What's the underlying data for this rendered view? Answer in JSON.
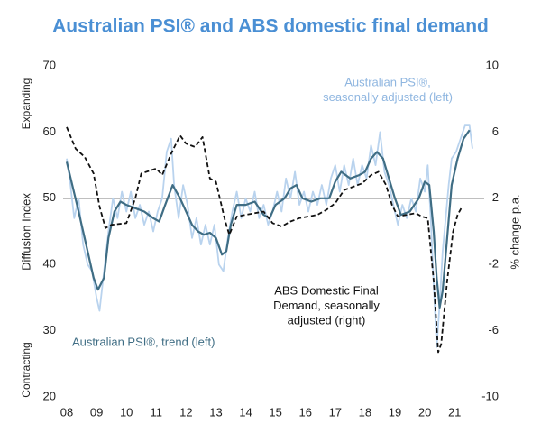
{
  "chart_data": {
    "type": "line",
    "title": "Australian PSI® and ABS domestic final demand",
    "ylabel": "Diffusion Index",
    "y2label": "% change p.a.",
    "ylabel_top": "Expanding",
    "ylabel_bottom": "Contracting",
    "xlim": [
      2008,
      2021.75
    ],
    "xticks": [
      {
        "value": 2008,
        "label": "08"
      },
      {
        "value": 2009,
        "label": "09"
      },
      {
        "value": 2010,
        "label": "10"
      },
      {
        "value": 2011,
        "label": "11"
      },
      {
        "value": 2012,
        "label": "12"
      },
      {
        "value": 2013,
        "label": "13"
      },
      {
        "value": 2014,
        "label": "14"
      },
      {
        "value": 2015,
        "label": "15"
      },
      {
        "value": 2016,
        "label": "16"
      },
      {
        "value": 2017,
        "label": "17"
      },
      {
        "value": 2018,
        "label": "18"
      },
      {
        "value": 2019,
        "label": "19"
      },
      {
        "value": 2020,
        "label": "20"
      },
      {
        "value": 2021,
        "label": "21"
      }
    ],
    "ylim": [
      20,
      70
    ],
    "yticks": [
      20,
      30,
      40,
      50,
      60,
      70
    ],
    "y2lim": [
      -10,
      10
    ],
    "y2ticks": [
      -10,
      -6,
      -2,
      2,
      6,
      10
    ],
    "reference_line": 50,
    "series": [
      {
        "name": "Australian PSI®, seasonally adjusted (left)",
        "color": "#b9d3ee",
        "dash": false,
        "width": 1.8,
        "x": [
          2008.0,
          2008.1,
          2008.25,
          2008.4,
          2008.55,
          2008.7,
          2008.85,
          2009.0,
          2009.1,
          2009.25,
          2009.4,
          2009.55,
          2009.7,
          2009.85,
          2010.0,
          2010.15,
          2010.3,
          2010.45,
          2010.6,
          2010.75,
          2010.9,
          2011.05,
          2011.2,
          2011.35,
          2011.5,
          2011.6,
          2011.75,
          2011.9,
          2012.05,
          2012.2,
          2012.35,
          2012.5,
          2012.65,
          2012.8,
          2012.95,
          2013.1,
          2013.25,
          2013.4,
          2013.55,
          2013.7,
          2013.85,
          2014.0,
          2014.15,
          2014.3,
          2014.45,
          2014.6,
          2014.75,
          2014.9,
          2015.05,
          2015.2,
          2015.35,
          2015.5,
          2015.65,
          2015.8,
          2015.95,
          2016.1,
          2016.25,
          2016.4,
          2016.55,
          2016.7,
          2016.85,
          2017.0,
          2017.15,
          2017.3,
          2017.45,
          2017.6,
          2017.75,
          2017.9,
          2018.05,
          2018.2,
          2018.35,
          2018.5,
          2018.65,
          2018.8,
          2018.95,
          2019.1,
          2019.25,
          2019.4,
          2019.55,
          2019.7,
          2019.85,
          2020.0,
          2020.1,
          2020.2,
          2020.3,
          2020.4,
          2020.5,
          2020.6,
          2020.7,
          2020.8,
          2020.9,
          2021.05,
          2021.2,
          2021.35,
          2021.5,
          2021.6
        ],
        "values": [
          56,
          53,
          47,
          50,
          43,
          40,
          39,
          35,
          33,
          39,
          45,
          50,
          47,
          51,
          48,
          51,
          47,
          49,
          46,
          48,
          45,
          48,
          50,
          57,
          59,
          52,
          47,
          52,
          49,
          44,
          47,
          43,
          46,
          43,
          46,
          40,
          39,
          44,
          48,
          51,
          47,
          50,
          48,
          51,
          47,
          49,
          46,
          48,
          51,
          48,
          53,
          50,
          54,
          49,
          51,
          48,
          51,
          49,
          52,
          49,
          53,
          55,
          51,
          55,
          52,
          56,
          52,
          55,
          53,
          58,
          55,
          60,
          54,
          52,
          49,
          46,
          49,
          47,
          50,
          48,
          53,
          51,
          55,
          47,
          37,
          27.5,
          34,
          42,
          47,
          52,
          56,
          57,
          59,
          61,
          61,
          57.5
        ]
      },
      {
        "name": "Australian PSI®, trend (left)",
        "color": "#3f6d84",
        "dash": false,
        "width": 2.2,
        "x": [
          2008.0,
          2008.4,
          2008.7,
          2008.9,
          2009.05,
          2009.25,
          2009.4,
          2009.6,
          2009.8,
          2010.0,
          2010.3,
          2010.6,
          2010.9,
          2011.1,
          2011.3,
          2011.55,
          2011.8,
          2012.0,
          2012.2,
          2012.4,
          2012.6,
          2012.8,
          2013.0,
          2013.2,
          2013.35,
          2013.5,
          2013.7,
          2014.0,
          2014.3,
          2014.6,
          2014.8,
          2015.0,
          2015.3,
          2015.5,
          2015.7,
          2015.9,
          2016.2,
          2016.5,
          2016.8,
          2017.0,
          2017.2,
          2017.5,
          2017.8,
          2018.0,
          2018.2,
          2018.4,
          2018.6,
          2018.8,
          2019.0,
          2019.2,
          2019.5,
          2019.8,
          2020.0,
          2020.15,
          2020.3,
          2020.4,
          2020.5,
          2020.6,
          2020.75,
          2020.9,
          2021.1,
          2021.3,
          2021.5
        ],
        "values": [
          55.5,
          48,
          42,
          38,
          36.2,
          38,
          44,
          48,
          49.5,
          49,
          48.5,
          48,
          47,
          46.5,
          49,
          52,
          50,
          48,
          46,
          45,
          44.5,
          44.8,
          44,
          41.5,
          42,
          46,
          49,
          49,
          49.5,
          47.5,
          47,
          49,
          50,
          51.5,
          52,
          50,
          49.5,
          50,
          50,
          52.5,
          54,
          53,
          53.5,
          54,
          56,
          57,
          56,
          53,
          50,
          47.5,
          48,
          50,
          52.5,
          52,
          45,
          38,
          33.5,
          36,
          44,
          52,
          56,
          59,
          60.3
        ]
      },
      {
        "name": "ABS Domestic Final Demand, seasonally adjusted (right)",
        "color": "#111111",
        "dash": true,
        "width": 1.8,
        "axis": "y2",
        "x": [
          2008.0,
          2008.3,
          2008.6,
          2008.9,
          2009.1,
          2009.3,
          2009.5,
          2010.0,
          2010.3,
          2010.5,
          2011.0,
          2011.2,
          2011.5,
          2011.8,
          2012.0,
          2012.3,
          2012.55,
          2012.8,
          2013.0,
          2013.3,
          2013.45,
          2013.7,
          2014.0,
          2014.3,
          2014.6,
          2014.9,
          2015.2,
          2015.5,
          2015.8,
          2016.1,
          2016.4,
          2016.7,
          2017.0,
          2017.3,
          2017.6,
          2017.9,
          2018.2,
          2018.45,
          2018.7,
          2018.9,
          2019.1,
          2019.4,
          2019.7,
          2019.9,
          2020.1,
          2020.3,
          2020.45,
          2020.55,
          2020.75,
          2020.95,
          2021.1,
          2021.25
        ],
        "values": [
          6.3,
          5,
          4.5,
          3.5,
          1.5,
          0.2,
          0.4,
          0.5,
          2,
          3.5,
          3.8,
          3.4,
          4.7,
          5.8,
          5.3,
          5.1,
          5.7,
          3.2,
          3.0,
          0.7,
          -0.2,
          0.9,
          1.0,
          1.1,
          1.2,
          0.5,
          0.3,
          0.6,
          0.8,
          0.9,
          1.0,
          1.3,
          1.7,
          2.5,
          2.7,
          2.9,
          3.4,
          3.6,
          2.8,
          1.6,
          0.9,
          1.0,
          1.1,
          0.9,
          0.8,
          -3,
          -7.3,
          -6.8,
          -3,
          0,
          1,
          1.5
        ]
      }
    ],
    "annotations": [
      {
        "lines": [
          "Australian PSI®,",
          "seasonally adjusted (left)"
        ],
        "color": "#8fb6e0"
      },
      {
        "lines": [
          "ABS Domestic Final",
          "Demand, seasonally",
          "adjusted (right)"
        ],
        "color": "#111111"
      },
      {
        "lines": [
          "Australian PSI®, trend (left)"
        ],
        "color": "#3f6d84"
      }
    ]
  }
}
